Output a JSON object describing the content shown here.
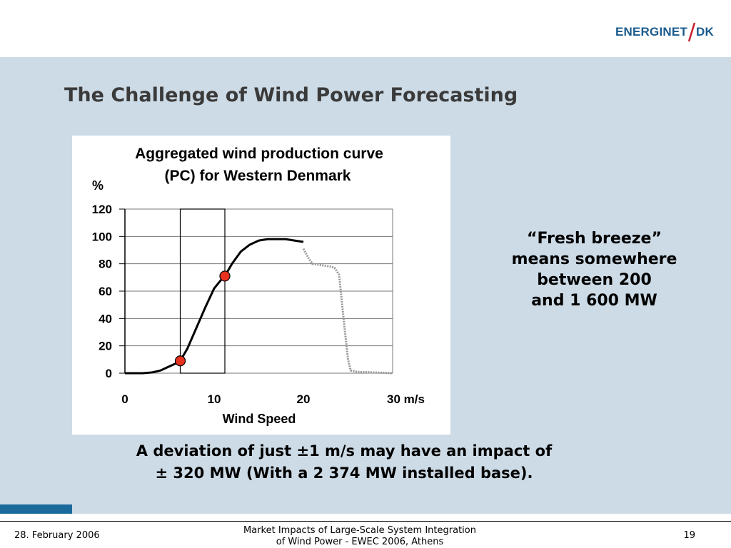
{
  "header": {
    "logo_left": "ENERGINET",
    "logo_right": "DK",
    "logo_separator": "slash"
  },
  "slide": {
    "title": "The Challenge of Wind Power Forecasting",
    "side_note": [
      "“Fresh breeze”",
      "means somewhere",
      "between 200",
      "and 1 600 MW"
    ],
    "bottom_note": [
      "A deviation of just ±1 m/s may have an impact of",
      "± 320 MW (With a 2 374 MW installed base)."
    ]
  },
  "footer": {
    "date": "28. February 2006",
    "center_line1": "Market Impacts of Large-Scale System Integration",
    "center_line2": "of Wind Power - EWEC 2006, Athens",
    "page_number": "19"
  },
  "colors": {
    "content_background": "#cddbe6",
    "accent_bar": "#1a6b9c",
    "logo_blue": "#1a5b8e",
    "logo_red": "#c8202d",
    "marker_fill": "#e8321f",
    "title_text": "#3a3a3a"
  },
  "chart_data": {
    "type": "line",
    "title": [
      "Aggregated wind production curve",
      "(PC) for Western Denmark"
    ],
    "xlabel": "Wind Speed",
    "ylabel": "%",
    "x_unit": "m/s",
    "xlim": [
      0,
      30
    ],
    "ylim": [
      0,
      120
    ],
    "x_ticks": [
      0,
      10,
      20,
      30
    ],
    "x_tick_labels": [
      "0",
      "10",
      "20",
      "30 m/s"
    ],
    "y_ticks": [
      0,
      20,
      40,
      60,
      80,
      100,
      120
    ],
    "y_tick_labels": [
      "0",
      "20",
      "40",
      "60",
      "80",
      "100",
      "120"
    ],
    "grid": true,
    "series": [
      {
        "style": "solid",
        "color": "#000000",
        "x": [
          0,
          2,
          3,
          4,
          5,
          6,
          6.2,
          7,
          8,
          9,
          10,
          11,
          11.2,
          12,
          13,
          14,
          15,
          16,
          17,
          18,
          19,
          20
        ],
        "y": [
          0,
          0,
          0.5,
          2,
          5,
          8,
          9,
          18,
          33,
          48,
          62,
          70,
          71,
          80,
          89,
          94,
          97,
          98,
          98,
          98,
          97,
          96
        ]
      },
      {
        "style": "dotted",
        "color": "#999999",
        "x": [
          20,
          20.5,
          21,
          22,
          23,
          23.5,
          24,
          24.5,
          25,
          25.3,
          26,
          28,
          30
        ],
        "y": [
          91,
          85,
          80,
          79,
          78,
          77,
          72,
          40,
          10,
          2,
          1,
          0.5,
          0
        ]
      }
    ],
    "highlight_band_x": [
      6.2,
      11.2
    ],
    "markers": [
      {
        "x": 6.2,
        "y": 9
      },
      {
        "x": 11.2,
        "y": 71
      }
    ]
  }
}
